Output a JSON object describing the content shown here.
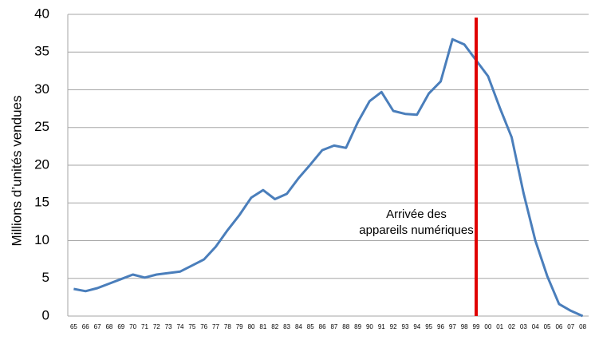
{
  "chart_data": {
    "type": "line",
    "y_label": "Millions d’unités vendues",
    "categories": [
      "65",
      "66",
      "67",
      "68",
      "69",
      "70",
      "71",
      "72",
      "73",
      "74",
      "75",
      "76",
      "77",
      "78",
      "79",
      "80",
      "81",
      "82",
      "83",
      "84",
      "85",
      "86",
      "87",
      "88",
      "89",
      "90",
      "91",
      "92",
      "93",
      "94",
      "95",
      "96",
      "97",
      "98",
      "99",
      "00",
      "01",
      "02",
      "03",
      "04",
      "05",
      "06",
      "07",
      "08"
    ],
    "series": [
      {
        "color": "#4a7ebb",
        "values": [
          3.6,
          3.3,
          3.7,
          4.3,
          4.9,
          5.5,
          5.1,
          5.5,
          5.7,
          5.9,
          6.7,
          7.5,
          9.2,
          11.4,
          13.4,
          15.7,
          16.7,
          15.5,
          16.2,
          18.3,
          20.1,
          22.0,
          22.6,
          22.3,
          25.7,
          28.5,
          29.7,
          27.2,
          26.8,
          26.7,
          29.5,
          31.1,
          36.7,
          36.0,
          33.9,
          31.8,
          27.6,
          23.7,
          16.3,
          10.0,
          5.3,
          1.6,
          0.7,
          0.0
        ]
      }
    ],
    "ylim": [
      0,
      40
    ],
    "yticks": [
      0,
      5,
      10,
      15,
      20,
      25,
      30,
      35,
      40
    ],
    "grid": true,
    "vline": {
      "category": "99",
      "color": "#e00000",
      "annotation": [
        "Arrivée des",
        "appareils numériques"
      ]
    }
  }
}
